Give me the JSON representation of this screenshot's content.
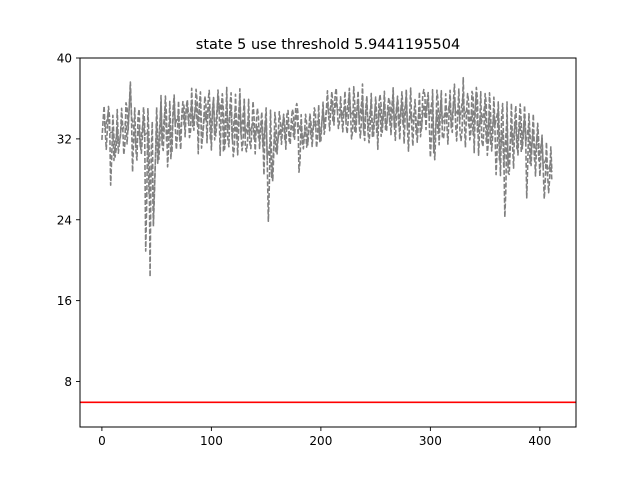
{
  "chart_data": {
    "type": "line",
    "title": "state 5 use threshold 5.9441195504",
    "xlabel": "",
    "ylabel": "",
    "xlim": [
      -20,
      433
    ],
    "ylim": [
      3.5,
      40
    ],
    "x_ticks": [
      0,
      100,
      200,
      300,
      400
    ],
    "y_ticks": [
      8,
      16,
      24,
      32,
      40
    ],
    "grid": false,
    "legend": "none",
    "series": [
      {
        "style": "dashed",
        "color": "#808080",
        "x_start": 0,
        "x_step": 4,
        "lower": [
          31.5,
          30.5,
          26.5,
          29.5,
          31.0,
          30.0,
          32.5,
          28.0,
          29.5,
          30.0,
          19.5,
          17.0,
          25.5,
          29.5,
          30.5,
          28.0,
          30.0,
          30.5,
          30.5,
          31.5,
          31.5,
          32.5,
          30.0,
          31.5,
          31.0,
          30.5,
          32.0,
          29.5,
          30.5,
          30.5,
          29.5,
          30.0,
          30.0,
          30.0,
          30.5,
          30.0,
          30.5,
          28.0,
          23.0,
          27.0,
          30.0,
          31.0,
          30.5,
          31.0,
          31.5,
          28.0,
          30.5,
          31.0,
          31.0,
          30.5,
          31.5,
          32.5,
          32.5,
          33.0,
          32.5,
          32.0,
          32.0,
          31.5,
          32.0,
          31.5,
          31.5,
          31.0,
          31.5,
          30.0,
          32.0,
          32.5,
          32.0,
          31.0,
          31.5,
          30.5,
          30.0,
          30.5,
          31.0,
          32.5,
          32.5,
          29.0,
          29.5,
          30.5,
          31.5,
          31.0,
          32.0,
          31.5,
          31.0,
          30.5,
          31.5,
          29.5,
          30.0,
          30.5,
          29.5,
          30.5,
          28.0,
          27.5,
          23.5,
          28.0,
          28.5,
          29.5,
          30.5,
          25.0,
          29.0,
          27.5,
          28.0,
          25.5,
          26.0
        ],
        "upper": [
          35.5,
          35.5,
          35.0,
          35.5,
          35.5,
          36.5,
          38.5,
          36.0,
          35.5,
          35.5,
          36.0,
          35.5,
          36.5,
          37.0,
          37.0,
          36.5,
          37.0,
          36.5,
          36.5,
          36.5,
          37.5,
          37.5,
          37.0,
          36.5,
          37.5,
          37.0,
          37.5,
          37.0,
          37.5,
          37.5,
          37.0,
          37.5,
          36.5,
          36.5,
          36.0,
          35.5,
          35.0,
          35.5,
          35.5,
          35.5,
          35.0,
          35.0,
          35.5,
          35.5,
          36.0,
          35.5,
          35.0,
          35.0,
          35.5,
          36.0,
          36.0,
          37.0,
          37.0,
          37.5,
          36.5,
          37.0,
          37.5,
          37.5,
          37.5,
          38.0,
          37.0,
          37.0,
          36.5,
          37.0,
          37.0,
          36.5,
          37.5,
          37.0,
          37.0,
          37.5,
          37.5,
          36.5,
          37.0,
          37.5,
          37.0,
          37.5,
          37.5,
          37.5,
          37.0,
          37.5,
          38.0,
          37.5,
          38.5,
          37.5,
          37.5,
          38.0,
          37.5,
          37.0,
          37.5,
          36.5,
          36.5,
          36.0,
          36.5,
          36.0,
          36.0,
          36.0,
          36.0,
          35.5,
          35.0,
          34.0,
          33.0,
          32.0,
          31.5
        ]
      }
    ],
    "threshold_line": {
      "y": 5.9441195504,
      "color": "#ff0000",
      "style": "solid"
    }
  }
}
